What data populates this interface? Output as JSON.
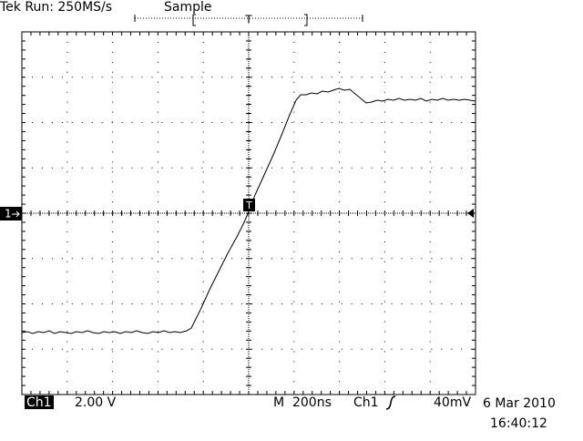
{
  "header": {
    "status": "Tek Run: 250MS/s",
    "mode": "Sample",
    "trigger_marker": "T"
  },
  "markers": {
    "channel": "1",
    "trigger": "T"
  },
  "footer": {
    "channel": "Ch1",
    "scale": "2.00 V",
    "timebase": "M  200ns",
    "trigger_source": "Ch1",
    "trigger_level": "40mV",
    "date": "6 Mar 2010",
    "time": "16:40:12"
  }
}
